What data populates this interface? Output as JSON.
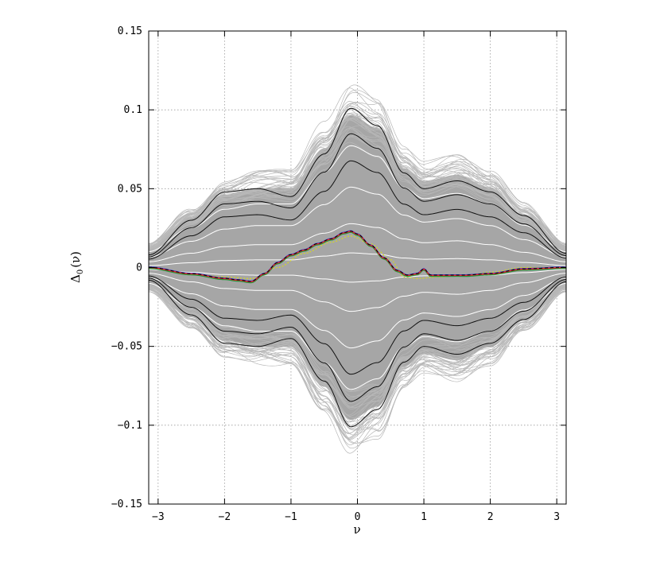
{
  "chart_data": {
    "type": "line",
    "title": "",
    "xlabel": "ν",
    "ylabel_main": "Δ",
    "ylabel_sub": "0",
    "ylabel_arg": "(ν)",
    "xlim": [
      -3.1416,
      3.1416
    ],
    "ylim": [
      -0.15,
      0.15
    ],
    "grid": true,
    "x_ticks": [
      -3,
      -2,
      -1,
      0,
      1,
      2,
      3
    ],
    "x_tick_labels": [
      "−3",
      "−2",
      "−1",
      "0",
      "1",
      "2",
      "3"
    ],
    "y_ticks": [
      -0.15,
      -0.1,
      -0.05,
      0,
      0.05,
      0.1,
      0.15
    ],
    "y_tick_labels": [
      "−0.15",
      "−0.1",
      "−0.05",
      "0",
      "0.05",
      "0.1",
      "0.15"
    ],
    "colors": {
      "band_fill": "#a6a6a6",
      "band_lines": "#b8b8b8",
      "quantile_white": "#ffffff",
      "envelope_black": "#111111",
      "observed_red": "#e8232a",
      "observed_green": "#1a9a3a",
      "observed_blue": "#2a3fd6",
      "observed_black_dash": "#000000",
      "yellow_dotted": "#d8d820"
    },
    "envelope_upper": {
      "x": [
        -3.1416,
        -2.5,
        -2.0,
        -1.5,
        -1.0,
        -0.5,
        -0.1,
        0.3,
        0.7,
        1.0,
        1.5,
        2.0,
        2.5,
        3.1416
      ],
      "y": [
        0.008,
        0.03,
        0.048,
        0.05,
        0.045,
        0.072,
        0.101,
        0.09,
        0.06,
        0.05,
        0.055,
        0.048,
        0.033,
        0.009
      ]
    },
    "envelope_lower": {
      "x": [
        -3.1416,
        -2.5,
        -2.0,
        -1.5,
        -1.0,
        -0.5,
        -0.1,
        0.3,
        0.7,
        1.0,
        1.5,
        2.0,
        2.5,
        3.1416
      ],
      "y": [
        -0.008,
        -0.03,
        -0.048,
        -0.05,
        -0.045,
        -0.072,
        -0.101,
        -0.09,
        -0.06,
        -0.05,
        -0.055,
        -0.048,
        -0.033,
        -0.009
      ]
    },
    "band_x": [
      -3.1416,
      -2.5,
      -2.0,
      -1.5,
      -1.0,
      -0.5,
      -0.1,
      0.3,
      0.7,
      1.0,
      1.5,
      2.0,
      2.5,
      3.1416
    ],
    "band_shape": [
      0.06,
      0.15,
      0.22,
      0.24,
      0.24,
      0.36,
      0.46,
      0.42,
      0.3,
      0.26,
      0.28,
      0.24,
      0.16,
      0.06
    ],
    "black_envelope_levels": [
      1.0,
      0.84,
      0.67,
      -0.67,
      -0.84,
      -1.0
    ],
    "white_quantile_levels": [
      0.5,
      0.33,
      0.18,
      0.06,
      -0.06,
      -0.18,
      -0.33,
      -0.5
    ],
    "observed": {
      "x": [
        -3.1416,
        -2.5,
        -2.0,
        -1.8,
        -1.6,
        -1.4,
        -1.2,
        -1.0,
        -0.8,
        -0.6,
        -0.4,
        -0.2,
        -0.1,
        0.0,
        0.2,
        0.4,
        0.6,
        0.75,
        0.9,
        1.0,
        1.1,
        1.3,
        1.6,
        2.0,
        2.5,
        3.1416
      ],
      "y": [
        0.0,
        -0.004,
        -0.007,
        -0.008,
        -0.009,
        -0.004,
        0.003,
        0.008,
        0.011,
        0.015,
        0.018,
        0.022,
        0.023,
        0.021,
        0.014,
        0.006,
        -0.002,
        -0.005,
        -0.004,
        -0.001,
        -0.005,
        -0.005,
        -0.005,
        -0.004,
        -0.001,
        0.0
      ]
    },
    "yellow_curve": {
      "x": [
        -3.1416,
        -2.5,
        -2.0,
        -1.6,
        -1.2,
        -0.8,
        -0.4,
        -0.1,
        0.2,
        0.5,
        0.7,
        0.9,
        1.2,
        1.6,
        2.0,
        2.5,
        3.1416
      ],
      "y": [
        0.0,
        -0.004,
        -0.006,
        -0.007,
        0.0,
        0.009,
        0.016,
        0.02,
        0.015,
        0.005,
        -0.006,
        -0.007,
        -0.006,
        -0.005,
        -0.003,
        0.0,
        0.0
      ]
    }
  }
}
